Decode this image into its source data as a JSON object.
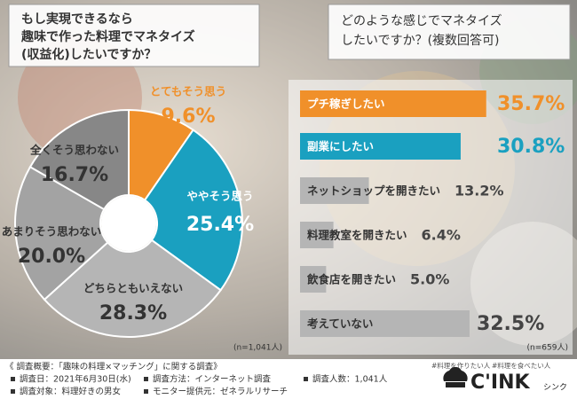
{
  "chart_data": [
    {
      "type": "pie",
      "title": [
        "もし実現できるなら",
        "趣味で作った料理でマネタイズ",
        "(収益化)したいですか？"
      ],
      "categories": [
        "とてもそう思う",
        "ややそう思う",
        "どちらともいえない",
        "あまりそう思わない",
        "全くそう思わない"
      ],
      "values": [
        9.6,
        25.4,
        28.3,
        20.0,
        16.7
      ],
      "value_labels": [
        "9.6%",
        "25.4%",
        "28.3%",
        "20.0%",
        "16.7%"
      ],
      "colors": [
        "#f0902a",
        "#1aa0c0",
        "#b5b5b5",
        "#a3a3a3",
        "#878787"
      ],
      "note": "(n=1,041人)"
    },
    {
      "type": "bar",
      "orientation": "horizontal",
      "title": [
        "どのような感じでマネタイズ",
        "したいですか？(複数回答可)"
      ],
      "categories": [
        "プチ稼ぎしたい",
        "副業にしたい",
        "ネットショップを開きたい",
        "料理教室を開きたい",
        "飲食店を開きたい",
        "考えていない"
      ],
      "values": [
        35.7,
        30.8,
        13.2,
        6.4,
        5.0,
        32.5
      ],
      "value_labels": [
        "35.7%",
        "30.8%",
        "13.2%",
        "6.4%",
        "5.0%",
        "32.5%"
      ],
      "colors": [
        "#f0902a",
        "#1aa0c0",
        "#b5b5b5",
        "#b5b5b5",
        "#b5b5b5",
        "#b5b5b5"
      ],
      "xlim": [
        0,
        40
      ],
      "note": "(n=659人)"
    }
  ],
  "footer": {
    "heading": "《 調査概要：「趣味の料理×マッチング」に関する調査》",
    "items": [
      "調査日：2021年6月30日(水)",
      "調査方法：インターネット調査",
      "調査人数：1,041人",
      "調査対象：料理好きの男女",
      "モニター提供元：ゼネラルリサーチ"
    ]
  },
  "logo": {
    "tags": [
      "#料理を作りたい人",
      "#料理を食べたい人"
    ],
    "name": "C'INK",
    "reading": "シンク"
  }
}
